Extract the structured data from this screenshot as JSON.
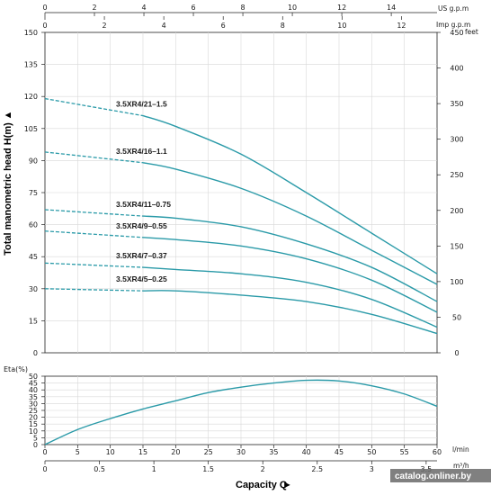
{
  "chart_data": [
    {
      "type": "line",
      "title": "",
      "ylabel": "Total manometric head H(m)",
      "ylabel_arrow": "▲",
      "y2label": "feet",
      "ylim": [
        0,
        150
      ],
      "yticks": [
        "0",
        "15",
        "30",
        "45",
        "60",
        "75",
        "90",
        "105",
        "120",
        "135",
        "150"
      ],
      "y2lim": [
        0,
        450
      ],
      "y2ticks": [
        "0",
        "50",
        "100",
        "150",
        "200",
        "250",
        "300",
        "350",
        "400",
        "450"
      ],
      "top_axes": [
        {
          "unit": "US g.p.m",
          "ticks": [
            "0",
            "2",
            "4",
            "6",
            "8",
            "10",
            "12",
            "14"
          ]
        },
        {
          "unit": "Imp g.p.m",
          "ticks": [
            "0",
            "2",
            "4",
            "6",
            "8",
            "10",
            "12"
          ]
        }
      ],
      "line_color": "#2a9aa8",
      "series": [
        {
          "name": "3.5XR4/21–1.5",
          "x": [
            0,
            15,
            20,
            30,
            40,
            50,
            60
          ],
          "y": [
            119,
            111,
            106,
            93,
            75,
            56,
            37
          ]
        },
        {
          "name": "3.5XR4/16–1.1",
          "x": [
            0,
            15,
            20,
            30,
            40,
            50,
            60
          ],
          "y": [
            94,
            89,
            86,
            77,
            64,
            48,
            32
          ]
        },
        {
          "name": "3.5XR4/11–0.75",
          "x": [
            0,
            15,
            20,
            30,
            40,
            50,
            60
          ],
          "y": [
            67,
            64,
            63,
            59,
            51,
            40,
            24
          ]
        },
        {
          "name": "3.5XR4/9–0.55",
          "x": [
            0,
            15,
            20,
            30,
            40,
            50,
            60
          ],
          "y": [
            57,
            54,
            53,
            50,
            44,
            34,
            19
          ]
        },
        {
          "name": "3.5XR4/7–0.37",
          "x": [
            0,
            15,
            20,
            30,
            40,
            50,
            60
          ],
          "y": [
            42,
            40,
            39,
            37,
            33,
            25,
            12
          ]
        },
        {
          "name": "3.5XR4/5–0.25",
          "x": [
            0,
            15,
            20,
            30,
            40,
            50,
            60
          ],
          "y": [
            30,
            29,
            29,
            27,
            24,
            18,
            9
          ]
        }
      ],
      "dashed_until_x": 15
    },
    {
      "type": "line",
      "ylabel": "Eta(%)",
      "ylim": [
        0,
        50
      ],
      "yticks": [
        "0",
        "5",
        "10",
        "15",
        "20",
        "25",
        "30",
        "35",
        "40",
        "45",
        "50"
      ],
      "xlabel": "Capacity Q",
      "xlabel_arrow": "►",
      "xlim": [
        0,
        60
      ],
      "xticks": [
        "0",
        "5",
        "10",
        "15",
        "20",
        "25",
        "30",
        "35",
        "40",
        "45",
        "50",
        "55",
        "60"
      ],
      "xunit": "l/min",
      "x2ticks": [
        "0",
        "0.5",
        "1",
        "1.5",
        "2",
        "2.5",
        "3",
        "3.5"
      ],
      "x2unit": "m³/h",
      "series": [
        {
          "x": [
            0,
            5,
            10,
            15,
            20,
            25,
            30,
            35,
            40,
            45,
            50,
            55,
            60
          ],
          "y": [
            0,
            11,
            19,
            26,
            32,
            38,
            42,
            45,
            47,
            46.5,
            43,
            37,
            28
          ]
        }
      ]
    }
  ],
  "watermark": "catalog.onliner.by"
}
